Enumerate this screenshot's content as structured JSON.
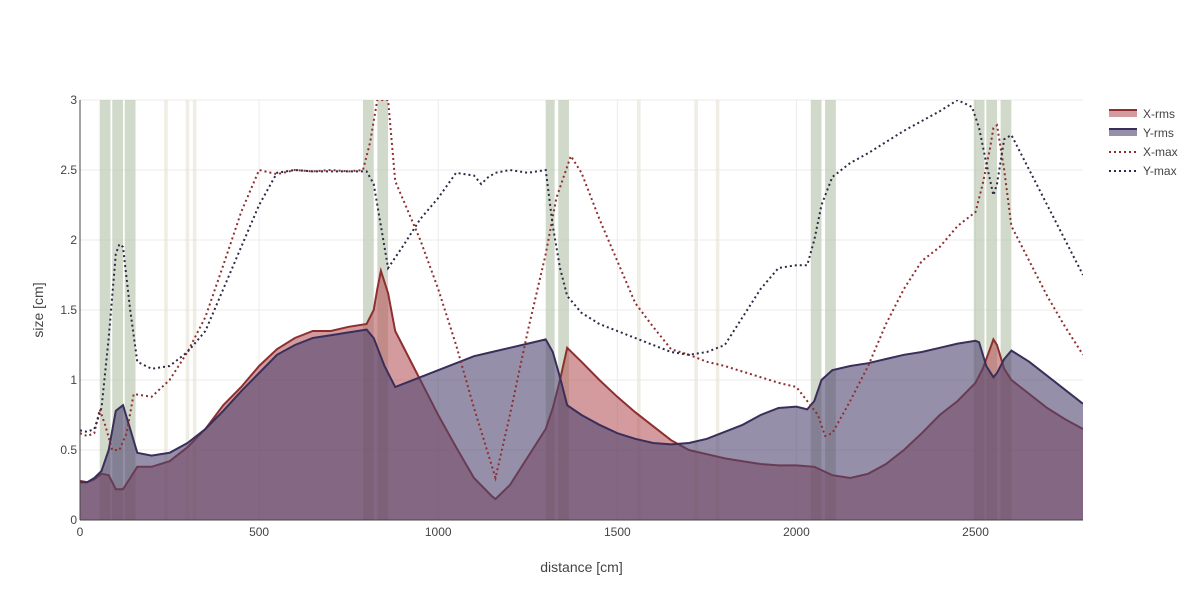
{
  "chart_data": {
    "type": "area",
    "xlabel": "distance [cm]",
    "ylabel": "size [cm]",
    "xlim": [
      0,
      2800
    ],
    "ylim": [
      0,
      3
    ],
    "x_ticks": [
      0,
      500,
      1000,
      1500,
      2000,
      2500
    ],
    "y_ticks": [
      0,
      0.5,
      1,
      1.5,
      2,
      2.5,
      3
    ],
    "grid": true,
    "legend_position": "top-right",
    "colors": {
      "x_rms_fill": "#b5585c",
      "x_rms_line": "#8e2f2f",
      "y_rms_fill": "#50456f",
      "y_rms_line": "#3a2e5a",
      "x_max_line": "#8e2f2f",
      "y_max_line": "#2c2a45",
      "band_strong": "#b9c4ad",
      "band_light": "#e6e1d2",
      "grid": "#ebebeb"
    },
    "bands": [
      {
        "start": 55,
        "end": 85,
        "strength": "strong"
      },
      {
        "start": 90,
        "end": 120,
        "strength": "strong"
      },
      {
        "start": 125,
        "end": 155,
        "strength": "strong"
      },
      {
        "start": 235,
        "end": 245,
        "strength": "light"
      },
      {
        "start": 295,
        "end": 305,
        "strength": "light"
      },
      {
        "start": 315,
        "end": 325,
        "strength": "light"
      },
      {
        "start": 790,
        "end": 820,
        "strength": "strong"
      },
      {
        "start": 830,
        "end": 860,
        "strength": "strong"
      },
      {
        "start": 1300,
        "end": 1325,
        "strength": "strong"
      },
      {
        "start": 1335,
        "end": 1365,
        "strength": "strong"
      },
      {
        "start": 1555,
        "end": 1565,
        "strength": "light"
      },
      {
        "start": 1715,
        "end": 1725,
        "strength": "light"
      },
      {
        "start": 1775,
        "end": 1785,
        "strength": "light"
      },
      {
        "start": 2040,
        "end": 2070,
        "strength": "strong"
      },
      {
        "start": 2080,
        "end": 2110,
        "strength": "strong"
      },
      {
        "start": 2495,
        "end": 2525,
        "strength": "strong"
      },
      {
        "start": 2530,
        "end": 2560,
        "strength": "strong"
      },
      {
        "start": 2570,
        "end": 2600,
        "strength": "strong"
      }
    ],
    "series": [
      {
        "name": "X-rms",
        "style": "area",
        "x": [
          0,
          20,
          40,
          60,
          80,
          100,
          120,
          140,
          160,
          200,
          250,
          300,
          350,
          400,
          450,
          500,
          550,
          600,
          650,
          700,
          750,
          800,
          820,
          830,
          840,
          860,
          880,
          900,
          950,
          1000,
          1050,
          1100,
          1150,
          1160,
          1200,
          1250,
          1300,
          1320,
          1340,
          1360,
          1400,
          1450,
          1500,
          1550,
          1600,
          1650,
          1700,
          1750,
          1800,
          1850,
          1900,
          1950,
          2000,
          2050,
          2100,
          2150,
          2200,
          2250,
          2300,
          2350,
          2400,
          2450,
          2500,
          2520,
          2540,
          2550,
          2560,
          2580,
          2600,
          2650,
          2700,
          2750,
          2800
        ],
        "y": [
          0.28,
          0.27,
          0.29,
          0.33,
          0.32,
          0.22,
          0.22,
          0.3,
          0.38,
          0.38,
          0.42,
          0.52,
          0.65,
          0.82,
          0.95,
          1.1,
          1.22,
          1.3,
          1.35,
          1.35,
          1.38,
          1.4,
          1.5,
          1.65,
          1.78,
          1.62,
          1.35,
          1.25,
          1.0,
          0.75,
          0.52,
          0.3,
          0.17,
          0.15,
          0.25,
          0.45,
          0.65,
          0.8,
          1.0,
          1.23,
          1.13,
          1.0,
          0.88,
          0.77,
          0.67,
          0.57,
          0.5,
          0.47,
          0.44,
          0.42,
          0.4,
          0.39,
          0.39,
          0.38,
          0.32,
          0.3,
          0.33,
          0.4,
          0.5,
          0.62,
          0.75,
          0.85,
          0.98,
          1.08,
          1.22,
          1.29,
          1.25,
          1.08,
          1.0,
          0.9,
          0.8,
          0.72,
          0.65
        ]
      },
      {
        "name": "Y-rms",
        "style": "area",
        "x": [
          0,
          20,
          40,
          60,
          80,
          100,
          120,
          140,
          160,
          200,
          250,
          300,
          350,
          400,
          450,
          500,
          550,
          600,
          650,
          700,
          750,
          800,
          820,
          850,
          880,
          900,
          950,
          1000,
          1050,
          1100,
          1150,
          1200,
          1250,
          1300,
          1320,
          1340,
          1360,
          1400,
          1450,
          1500,
          1550,
          1600,
          1650,
          1700,
          1750,
          1800,
          1850,
          1900,
          1950,
          2000,
          2030,
          2050,
          2070,
          2100,
          2150,
          2200,
          2250,
          2300,
          2350,
          2400,
          2450,
          2500,
          2510,
          2530,
          2550,
          2560,
          2580,
          2600,
          2650,
          2700,
          2750,
          2800
        ],
        "y": [
          0.27,
          0.27,
          0.3,
          0.35,
          0.5,
          0.78,
          0.82,
          0.65,
          0.48,
          0.46,
          0.48,
          0.55,
          0.65,
          0.78,
          0.92,
          1.05,
          1.18,
          1.25,
          1.3,
          1.32,
          1.34,
          1.36,
          1.3,
          1.1,
          0.95,
          0.97,
          1.02,
          1.07,
          1.12,
          1.17,
          1.2,
          1.23,
          1.26,
          1.29,
          1.2,
          1.02,
          0.82,
          0.75,
          0.68,
          0.62,
          0.58,
          0.55,
          0.54,
          0.55,
          0.58,
          0.63,
          0.68,
          0.75,
          0.8,
          0.81,
          0.79,
          0.85,
          1.0,
          1.07,
          1.1,
          1.12,
          1.15,
          1.18,
          1.2,
          1.23,
          1.26,
          1.28,
          1.27,
          1.1,
          1.02,
          1.05,
          1.15,
          1.21,
          1.13,
          1.03,
          0.93,
          0.83
        ]
      },
      {
        "name": "X-max",
        "style": "dotted-line",
        "x": [
          0,
          20,
          40,
          55,
          70,
          90,
          110,
          130,
          150,
          200,
          250,
          300,
          350,
          400,
          450,
          500,
          550,
          600,
          650,
          700,
          750,
          790,
          810,
          830,
          840,
          860,
          880,
          900,
          950,
          1000,
          1050,
          1100,
          1130,
          1160,
          1200,
          1250,
          1300,
          1330,
          1370,
          1400,
          1450,
          1500,
          1550,
          1600,
          1650,
          1700,
          1750,
          1800,
          1850,
          1900,
          1950,
          2000,
          2030,
          2060,
          2080,
          2100,
          2150,
          2200,
          2250,
          2300,
          2350,
          2400,
          2450,
          2500,
          2520,
          2540,
          2550,
          2560,
          2580,
          2600,
          2650,
          2700,
          2750,
          2800
        ],
        "y": [
          0.62,
          0.6,
          0.62,
          0.79,
          0.68,
          0.5,
          0.5,
          0.62,
          0.9,
          0.88,
          1.0,
          1.2,
          1.45,
          1.82,
          2.2,
          2.5,
          2.47,
          2.5,
          2.49,
          2.5,
          2.49,
          2.5,
          2.7,
          3.0,
          3.0,
          3.0,
          2.42,
          2.3,
          2.0,
          1.65,
          1.25,
          0.8,
          0.55,
          0.3,
          0.75,
          1.35,
          1.9,
          2.3,
          2.6,
          2.48,
          2.15,
          1.85,
          1.55,
          1.38,
          1.22,
          1.18,
          1.13,
          1.1,
          1.06,
          1.02,
          0.98,
          0.95,
          0.85,
          0.75,
          0.6,
          0.62,
          0.85,
          1.1,
          1.4,
          1.65,
          1.85,
          1.95,
          2.1,
          2.2,
          2.4,
          2.65,
          2.8,
          2.82,
          2.5,
          2.1,
          1.85,
          1.6,
          1.38,
          1.18
        ]
      },
      {
        "name": "Y-max",
        "style": "dotted-line",
        "x": [
          0,
          20,
          40,
          60,
          80,
          100,
          110,
          120,
          140,
          160,
          200,
          250,
          300,
          350,
          400,
          450,
          500,
          550,
          600,
          650,
          700,
          750,
          800,
          820,
          860,
          900,
          950,
          1000,
          1050,
          1100,
          1120,
          1140,
          1160,
          1200,
          1250,
          1300,
          1320,
          1340,
          1360,
          1400,
          1450,
          1500,
          1550,
          1600,
          1650,
          1700,
          1750,
          1800,
          1850,
          1900,
          1950,
          2000,
          2030,
          2050,
          2070,
          2100,
          2150,
          2200,
          2250,
          2300,
          2350,
          2400,
          2450,
          2490,
          2510,
          2530,
          2550,
          2560,
          2580,
          2600,
          2650,
          2700,
          2750,
          2800
        ],
        "y": [
          0.64,
          0.63,
          0.65,
          0.8,
          1.3,
          1.9,
          1.97,
          1.95,
          1.5,
          1.13,
          1.08,
          1.1,
          1.2,
          1.35,
          1.65,
          1.95,
          2.25,
          2.48,
          2.5,
          2.49,
          2.49,
          2.49,
          2.49,
          2.4,
          1.8,
          1.95,
          2.15,
          2.3,
          2.48,
          2.46,
          2.4,
          2.45,
          2.48,
          2.5,
          2.48,
          2.5,
          2.1,
          1.8,
          1.6,
          1.48,
          1.4,
          1.35,
          1.3,
          1.25,
          1.2,
          1.18,
          1.2,
          1.25,
          1.45,
          1.65,
          1.8,
          1.82,
          1.82,
          2.0,
          2.25,
          2.45,
          2.55,
          2.62,
          2.7,
          2.78,
          2.85,
          2.92,
          3.0,
          2.95,
          2.8,
          2.55,
          2.32,
          2.4,
          2.72,
          2.75,
          2.5,
          2.25,
          2.0,
          1.75
        ]
      }
    ]
  }
}
